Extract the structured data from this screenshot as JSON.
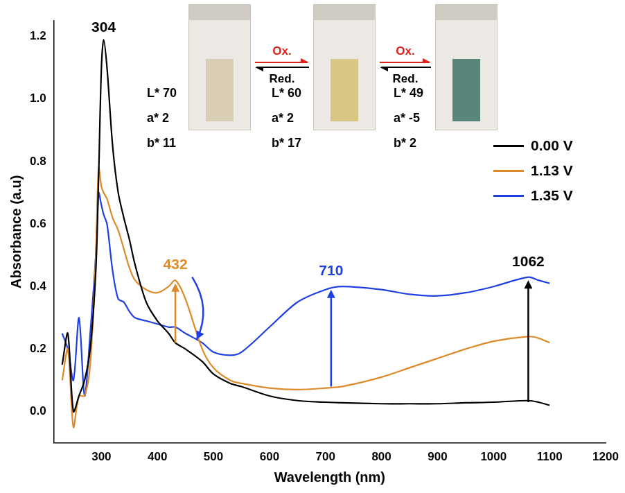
{
  "chart_data": {
    "type": "line",
    "x_label": "Wavelength (nm)",
    "y_label": "Absorbance (a.u)",
    "x": [
      230,
      240,
      250,
      260,
      270,
      280,
      290,
      295,
      300,
      304,
      310,
      320,
      330,
      340,
      350,
      360,
      380,
      400,
      420,
      432,
      450,
      480,
      500,
      530,
      550,
      600,
      650,
      700,
      730,
      800,
      850,
      900,
      950,
      1000,
      1062,
      1080,
      1100
    ],
    "series": [
      {
        "name": "0.00 V",
        "color": "#000000",
        "values": [
          0.15,
          0.25,
          0.0,
          0.05,
          0.1,
          0.2,
          0.45,
          0.75,
          1.1,
          1.19,
          1.1,
          0.85,
          0.7,
          0.62,
          0.55,
          0.47,
          0.35,
          0.29,
          0.25,
          0.22,
          0.2,
          0.16,
          0.12,
          0.09,
          0.08,
          0.05,
          0.035,
          0.03,
          0.028,
          0.025,
          0.025,
          0.025,
          0.028,
          0.03,
          0.035,
          0.03,
          0.02
        ]
      },
      {
        "name": "1.13 V",
        "color": "#dd8a2a",
        "values": [
          0.1,
          0.2,
          -0.05,
          0.05,
          0.05,
          0.15,
          0.5,
          0.78,
          0.72,
          0.7,
          0.68,
          0.62,
          0.58,
          0.52,
          0.46,
          0.42,
          0.39,
          0.38,
          0.4,
          0.42,
          0.36,
          0.2,
          0.14,
          0.1,
          0.09,
          0.075,
          0.07,
          0.075,
          0.08,
          0.11,
          0.14,
          0.17,
          0.2,
          0.225,
          0.24,
          0.235,
          0.22
        ]
      },
      {
        "name": "1.35 V",
        "color": "#1f3fe0",
        "values": [
          0.25,
          0.2,
          0.1,
          0.3,
          0.05,
          0.25,
          0.5,
          0.7,
          0.66,
          0.63,
          0.6,
          0.45,
          0.36,
          0.35,
          0.32,
          0.3,
          0.29,
          0.28,
          0.27,
          0.27,
          0.25,
          0.22,
          0.19,
          0.18,
          0.19,
          0.27,
          0.35,
          0.39,
          0.4,
          0.39,
          0.375,
          0.37,
          0.38,
          0.4,
          0.43,
          0.42,
          0.41
        ]
      }
    ],
    "xlim": [
      215,
      1200
    ],
    "xticks": [
      300,
      400,
      500,
      600,
      700,
      800,
      900,
      1000,
      1100,
      1200
    ],
    "ylim": [
      -0.1,
      1.25
    ],
    "yticks": [
      {
        "value": 0,
        "label": "0.0"
      },
      {
        "value": 0.2,
        "label": "0.2"
      },
      {
        "value": 0.4,
        "label": "0.4"
      },
      {
        "value": 0.6,
        "label": "0.6"
      },
      {
        "value": 0.8,
        "label": "0.8"
      },
      {
        "value": 1,
        "label": "1.0"
      },
      {
        "value": 1.2,
        "label": "1.2"
      }
    ],
    "grid": false,
    "legend": "right",
    "annotations": [
      {
        "text": "304",
        "x": 304,
        "y": 1.2,
        "color": "#000000"
      },
      {
        "text": "432",
        "x": 432,
        "y": 0.44,
        "color": "#dd8a2a"
      },
      {
        "text": "710",
        "x": 710,
        "y": 0.42,
        "color": "#1f3fe0"
      },
      {
        "text": "1062",
        "x": 1062,
        "y": 0.45,
        "color": "#000000"
      }
    ],
    "arrows": [
      {
        "x0": 432,
        "y0": 0.22,
        "x1": 432,
        "y1": 0.41,
        "color": "#dd8a2a"
      },
      {
        "x0": 462,
        "y0": 0.43,
        "x1": 470,
        "y1": 0.23,
        "color": "#1f3fe0"
      },
      {
        "x0": 710,
        "y0": 0.08,
        "x1": 710,
        "y1": 0.39,
        "color": "#1f3fe0"
      },
      {
        "x0": 1062,
        "y0": 0.03,
        "x1": 1062,
        "y1": 0.42,
        "color": "#000000"
      }
    ],
    "insets": {
      "forward": "Ox.",
      "backward": "Red.",
      "cuvettes": [
        {
          "color": "#d9cdb5",
          "values": [
            {
              "label": "L*",
              "value": 70
            },
            {
              "label": "a*",
              "value": 2
            },
            {
              "label": "b*",
              "value": 11
            }
          ]
        },
        {
          "color": "#d8c783",
          "values": [
            {
              "label": "L*",
              "value": 60
            },
            {
              "label": "a*",
              "value": 2
            },
            {
              "label": "b*",
              "value": 17
            }
          ]
        },
        {
          "color": "#5a857b",
          "values": [
            {
              "label": "L*",
              "value": 49
            },
            {
              "label": "a*",
              "value": -5
            },
            {
              "label": "b*",
              "value": 2
            }
          ]
        }
      ]
    }
  }
}
